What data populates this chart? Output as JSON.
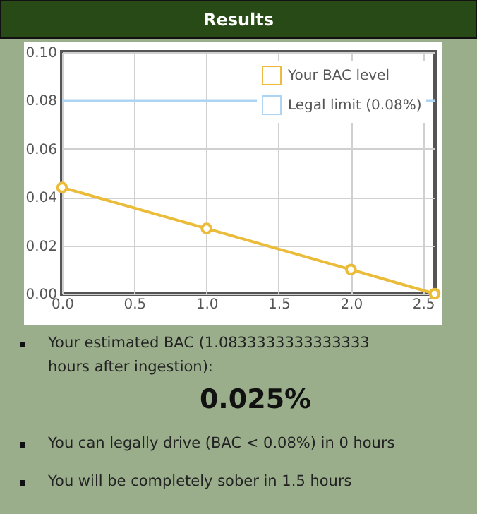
{
  "chart_data": {
    "type": "line",
    "title": "Results",
    "x": [
      0,
      1,
      2,
      2.58
    ],
    "series": [
      {
        "name": "Your BAC level",
        "color": "#ebbb3a",
        "values": [
          0.044,
          0.027,
          0.01,
          0
        ],
        "marker": "circle"
      },
      {
        "name": "Legal limit (0.08%)",
        "color": "#aed4f3",
        "x": [
          0,
          2.58
        ],
        "values": [
          0.08,
          0.08
        ],
        "marker": "none"
      }
    ],
    "xlim": [
      0,
      2.58
    ],
    "ylim": [
      0,
      0.1
    ],
    "xticks": [
      {
        "value": 0,
        "label": "0.0"
      },
      0.5,
      {
        "value": 1,
        "label": "1.0"
      },
      1.5,
      {
        "value": 2,
        "label": "2.0"
      },
      2.5
    ],
    "yticks": [
      {
        "value": 0,
        "label": "0.00"
      },
      0.02,
      0.04,
      0.06,
      0.08,
      {
        "value": 0.1,
        "label": "0.10"
      }
    ],
    "grid": true,
    "legend": "top right",
    "line_style": "solid",
    "annotations": [
      "Your estimated BAC (1.0833333333333333 hours after ingestion):",
      "0.025%",
      "You can legally drive (BAC < 0.08%) in 0 hours",
      "You will be completely sober in 1.5 hours"
    ]
  }
}
